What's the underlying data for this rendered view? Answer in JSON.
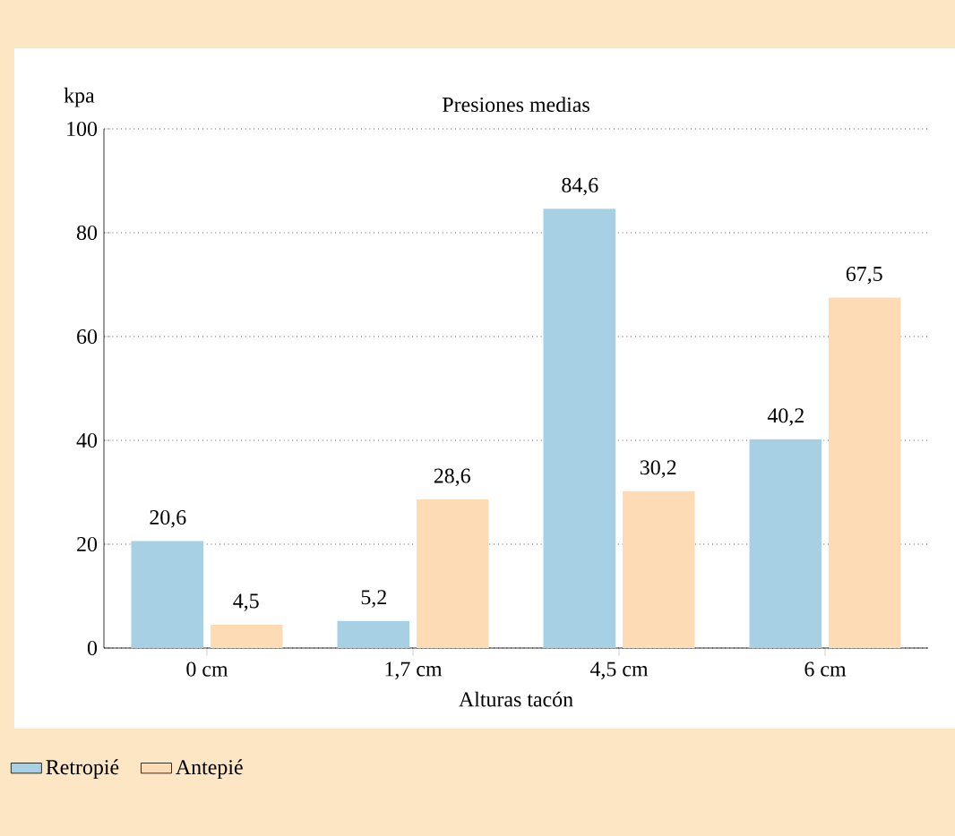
{
  "chart_data": {
    "type": "bar",
    "title": "Presiones medias",
    "xlabel": "Alturas tacón",
    "ylabel": "kpa",
    "categories": [
      "0 cm",
      "1,7 cm",
      "4,5 cm",
      "6 cm"
    ],
    "series": [
      {
        "name": "Retropié",
        "color": "#a8d0e4",
        "values": [
          20.6,
          5.2,
          84.6,
          40.2
        ],
        "value_labels": [
          "20,6",
          "5,2",
          "84,6",
          "40,2"
        ]
      },
      {
        "name": "Antepié",
        "color": "#fddcb5",
        "values": [
          4.5,
          28.6,
          30.2,
          67.5
        ],
        "value_labels": [
          "4,5",
          "28,6",
          "30,2",
          "67,5"
        ]
      }
    ],
    "ylim": [
      0,
      100
    ],
    "yticks": [
      0,
      20,
      40,
      60,
      80,
      100
    ],
    "grid": "y",
    "legend": "bottom left"
  }
}
